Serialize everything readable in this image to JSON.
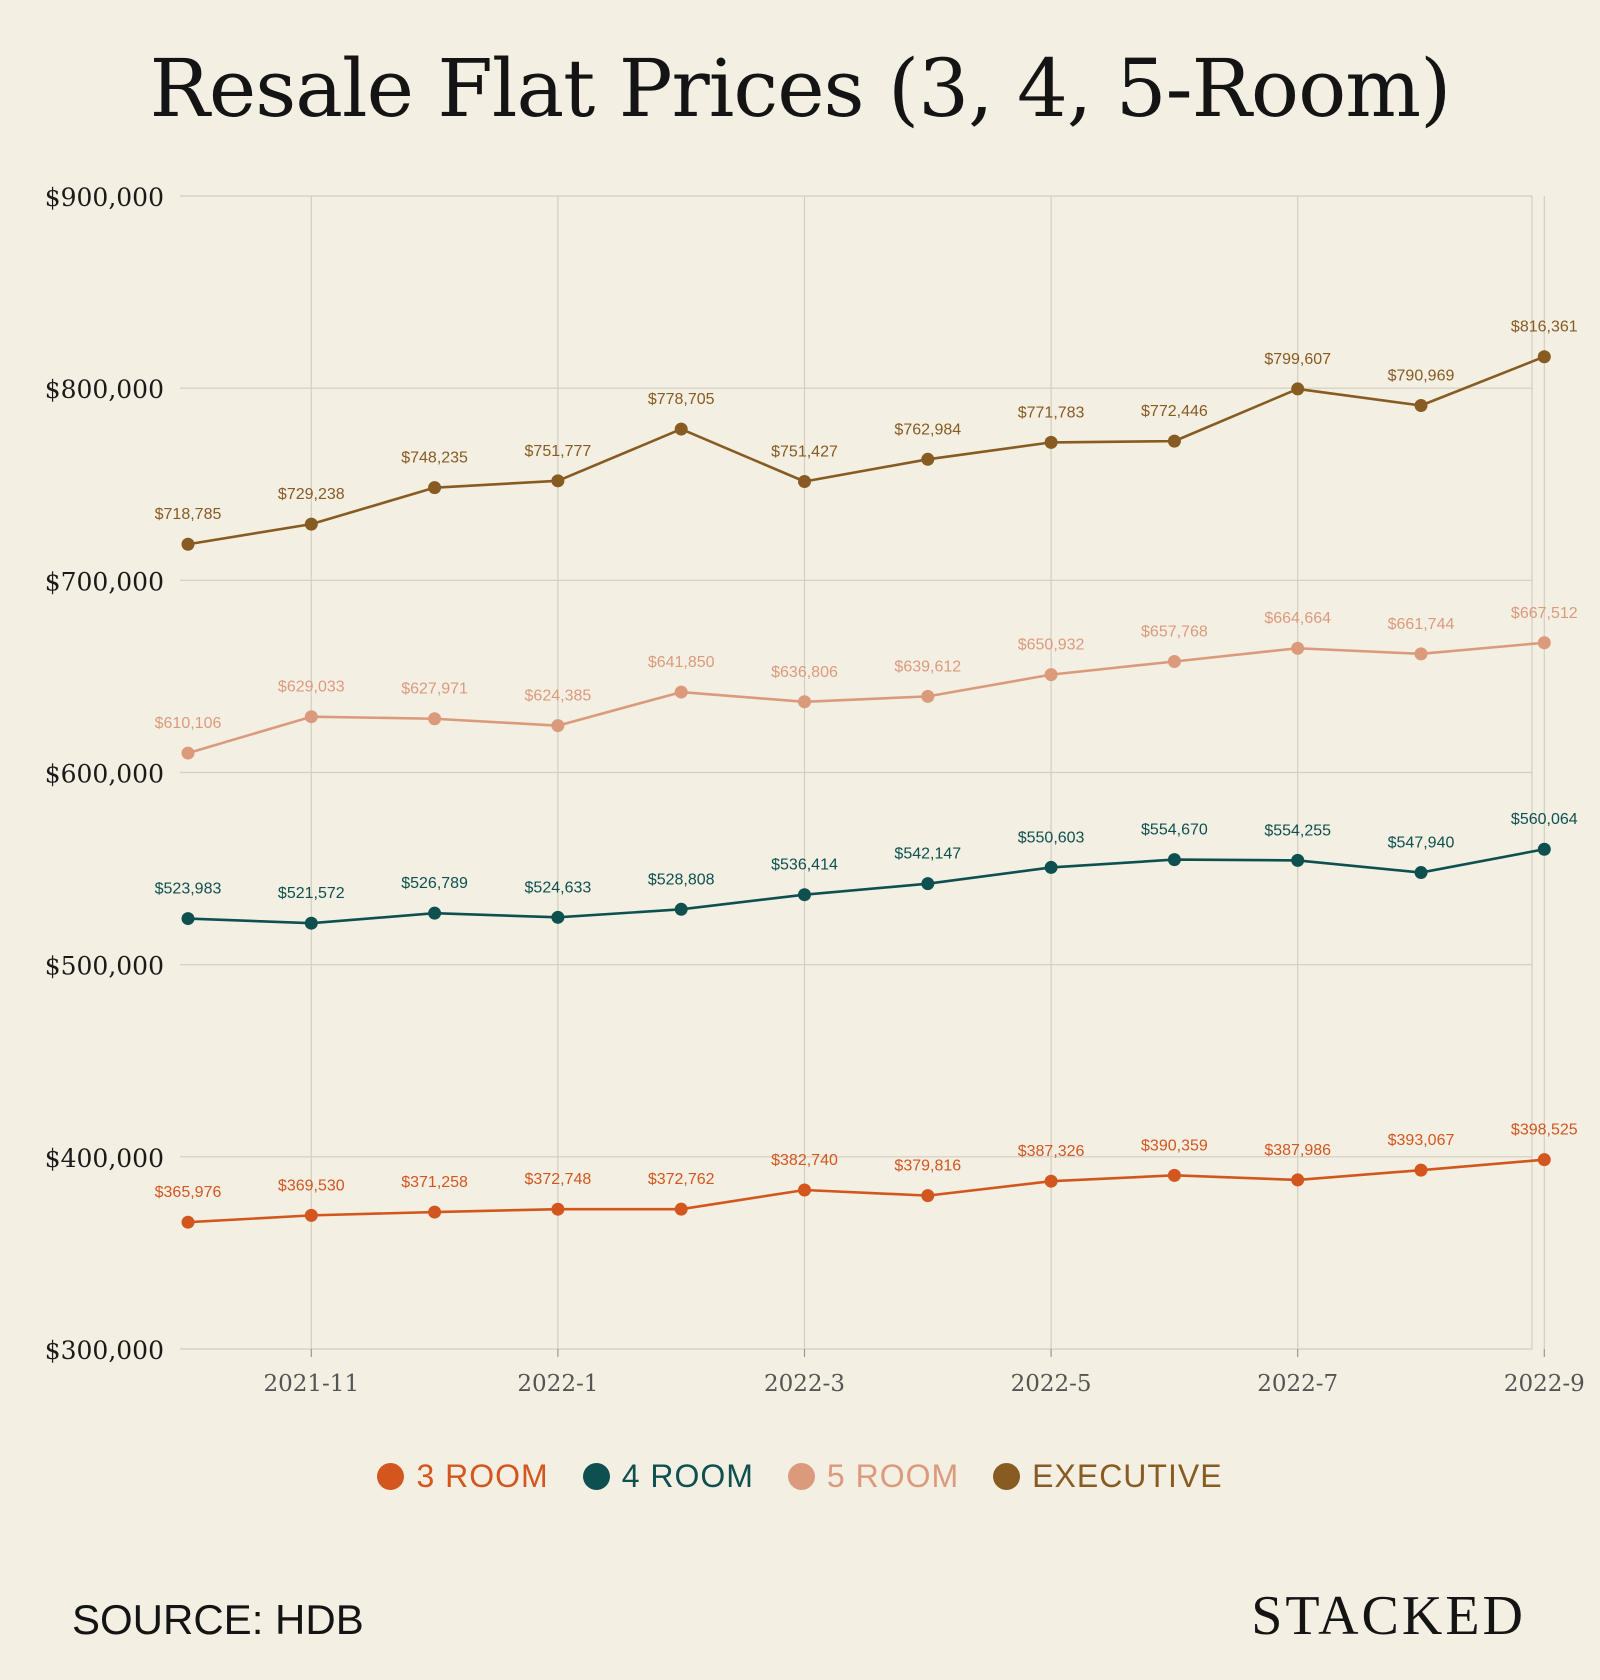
{
  "chart_data": {
    "type": "line",
    "title": "Resale Flat Prices (3, 4, 5-Room)",
    "x": [
      "2021-10",
      "2021-11",
      "2021-12",
      "2022-1",
      "2022-2",
      "2022-3",
      "2022-4",
      "2022-5",
      "2022-6",
      "2022-7",
      "2022-8",
      "2022-9"
    ],
    "x_tick_labels": [
      "2021-11",
      "2022-1",
      "2022-3",
      "2022-5",
      "2022-7",
      "2022-9"
    ],
    "y_tick_labels": [
      "$300,000",
      "$400,000",
      "$500,000",
      "$600,000",
      "$700,000",
      "$800,000",
      "$900,000"
    ],
    "ylim": [
      300000,
      900000
    ],
    "grid": true,
    "legend_position": "bottom",
    "series": [
      {
        "name": "3 ROOM",
        "color": "#d4561f",
        "values": [
          365976,
          369530,
          371258,
          372748,
          372762,
          382740,
          379816,
          387326,
          390359,
          387986,
          393067,
          398525
        ],
        "labels": [
          "$365,976",
          "$369,530",
          "$371,258",
          "$372,748",
          "$372,762",
          "$382,740",
          "$379,816",
          "$387,326",
          "$390,359",
          "$387,986",
          "$393,067",
          "$398,525"
        ]
      },
      {
        "name": "4 ROOM",
        "color": "#0e5050",
        "values": [
          523983,
          521572,
          526789,
          524633,
          528808,
          536414,
          542147,
          550603,
          554670,
          554255,
          547940,
          560064
        ],
        "labels": [
          "$523,983",
          "$521,572",
          "$526,789",
          "$524,633",
          "$528,808",
          "$536,414",
          "$542,147",
          "$550,603",
          "$554,670",
          "$554,255",
          "$547,940",
          "$560,064"
        ]
      },
      {
        "name": "5 ROOM",
        "color": "#dc9a7d",
        "values": [
          610106,
          629033,
          627971,
          624385,
          641850,
          636806,
          639612,
          650932,
          657768,
          664664,
          661744,
          667512
        ],
        "labels": [
          "$610,106",
          "$629,033",
          "$627,971",
          "$624,385",
          "$641,850",
          "$636,806",
          "$639,612",
          "$650,932",
          "$657,768",
          "$664,664",
          "$661,744",
          "$667,512"
        ]
      },
      {
        "name": "EXECUTIVE",
        "color": "#875b22",
        "values": [
          718785,
          729238,
          748235,
          751777,
          778705,
          751427,
          762984,
          771783,
          772446,
          799607,
          790969,
          816361
        ],
        "labels": [
          "$718,785",
          "$729,238",
          "$748,235",
          "$751,777",
          "$778,705",
          "$751,427",
          "$762,984",
          "$771,783",
          "$772,446",
          "$799,607",
          "$790,969",
          "$816,361"
        ]
      }
    ]
  },
  "footer": {
    "source": "SOURCE: HDB",
    "brand": "STACKED"
  }
}
